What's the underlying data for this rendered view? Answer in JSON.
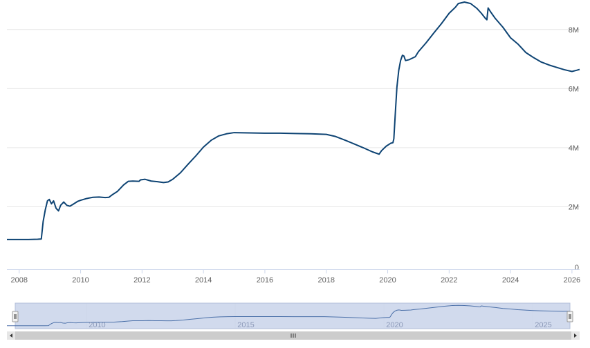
{
  "chart_data": {
    "type": "line",
    "title": "",
    "xlabel": "",
    "ylabel": "",
    "xlim": [
      2007.6,
      2026.25
    ],
    "ylim": [
      0,
      9
    ],
    "x_ticks": [
      "2008",
      "2010",
      "2012",
      "2014",
      "2016",
      "2018",
      "2020",
      "2022",
      "2024",
      "2026"
    ],
    "y_ticks": [
      "0",
      "2M",
      "4M",
      "6M",
      "8M"
    ],
    "grid": "horizontal",
    "line_color": "#0d4373",
    "series": [
      {
        "values_unit": "millions",
        "points": [
          [
            2007.6,
            0.89
          ],
          [
            2008.0,
            0.89
          ],
          [
            2008.3,
            0.89
          ],
          [
            2008.6,
            0.9
          ],
          [
            2008.72,
            0.91
          ],
          [
            2008.78,
            1.5
          ],
          [
            2008.85,
            1.9
          ],
          [
            2008.92,
            2.2
          ],
          [
            2008.98,
            2.25
          ],
          [
            2009.05,
            2.1
          ],
          [
            2009.12,
            2.2
          ],
          [
            2009.2,
            1.95
          ],
          [
            2009.28,
            1.86
          ],
          [
            2009.35,
            2.05
          ],
          [
            2009.45,
            2.16
          ],
          [
            2009.55,
            2.05
          ],
          [
            2009.65,
            2.02
          ],
          [
            2009.75,
            2.08
          ],
          [
            2009.9,
            2.18
          ],
          [
            2010.0,
            2.22
          ],
          [
            2010.2,
            2.28
          ],
          [
            2010.4,
            2.32
          ],
          [
            2010.6,
            2.33
          ],
          [
            2010.8,
            2.31
          ],
          [
            2010.92,
            2.32
          ],
          [
            2011.05,
            2.42
          ],
          [
            2011.2,
            2.52
          ],
          [
            2011.4,
            2.74
          ],
          [
            2011.55,
            2.86
          ],
          [
            2011.7,
            2.87
          ],
          [
            2011.9,
            2.86
          ],
          [
            2011.95,
            2.91
          ],
          [
            2012.1,
            2.93
          ],
          [
            2012.3,
            2.87
          ],
          [
            2012.5,
            2.85
          ],
          [
            2012.7,
            2.82
          ],
          [
            2012.85,
            2.84
          ],
          [
            2013.0,
            2.93
          ],
          [
            2013.25,
            3.15
          ],
          [
            2013.5,
            3.44
          ],
          [
            2013.75,
            3.72
          ],
          [
            2014.0,
            4.02
          ],
          [
            2014.25,
            4.25
          ],
          [
            2014.5,
            4.4
          ],
          [
            2014.75,
            4.47
          ],
          [
            2015.0,
            4.51
          ],
          [
            2015.5,
            4.5
          ],
          [
            2016.0,
            4.49
          ],
          [
            2016.5,
            4.49
          ],
          [
            2017.0,
            4.48
          ],
          [
            2017.5,
            4.47
          ],
          [
            2018.0,
            4.45
          ],
          [
            2018.3,
            4.38
          ],
          [
            2018.6,
            4.26
          ],
          [
            2018.9,
            4.13
          ],
          [
            2019.2,
            4.0
          ],
          [
            2019.5,
            3.86
          ],
          [
            2019.72,
            3.78
          ],
          [
            2019.8,
            3.9
          ],
          [
            2019.95,
            4.05
          ],
          [
            2020.1,
            4.15
          ],
          [
            2020.17,
            4.17
          ],
          [
            2020.2,
            4.3
          ],
          [
            2020.25,
            5.2
          ],
          [
            2020.3,
            6.05
          ],
          [
            2020.36,
            6.62
          ],
          [
            2020.42,
            6.95
          ],
          [
            2020.48,
            7.13
          ],
          [
            2020.53,
            7.1
          ],
          [
            2020.58,
            6.95
          ],
          [
            2020.7,
            6.98
          ],
          [
            2020.9,
            7.08
          ],
          [
            2021.0,
            7.25
          ],
          [
            2021.25,
            7.55
          ],
          [
            2021.5,
            7.88
          ],
          [
            2021.75,
            8.2
          ],
          [
            2022.0,
            8.55
          ],
          [
            2022.2,
            8.75
          ],
          [
            2022.3,
            8.88
          ],
          [
            2022.5,
            8.93
          ],
          [
            2022.7,
            8.88
          ],
          [
            2022.9,
            8.72
          ],
          [
            2023.05,
            8.55
          ],
          [
            2023.18,
            8.38
          ],
          [
            2023.23,
            8.33
          ],
          [
            2023.27,
            8.73
          ],
          [
            2023.35,
            8.6
          ],
          [
            2023.5,
            8.38
          ],
          [
            2023.75,
            8.08
          ],
          [
            2024.0,
            7.72
          ],
          [
            2024.25,
            7.5
          ],
          [
            2024.5,
            7.22
          ],
          [
            2024.75,
            7.05
          ],
          [
            2025.0,
            6.9
          ],
          [
            2025.25,
            6.8
          ],
          [
            2025.5,
            6.72
          ],
          [
            2025.75,
            6.64
          ],
          [
            2026.0,
            6.58
          ],
          [
            2026.15,
            6.62
          ],
          [
            2026.25,
            6.65
          ]
        ]
      }
    ]
  },
  "navigator": {
    "labels": [
      "2010",
      "2015",
      "2020",
      "2025"
    ],
    "range": [
      2007.6,
      2026.25
    ],
    "selection": [
      2007.6,
      2026.25
    ],
    "grip_icon": "grip-lines-icon",
    "left_arrow_icon": "arrow-left-icon",
    "right_arrow_icon": "arrow-right-icon",
    "colors": {
      "mask": "#c9d3ea",
      "outline": "#b3bfd9",
      "line": "#4a6fa8",
      "scrollbar_track": "#f2f2f2",
      "scrollbar_thumb": "#cccccc",
      "label": "#8c99b8"
    }
  }
}
